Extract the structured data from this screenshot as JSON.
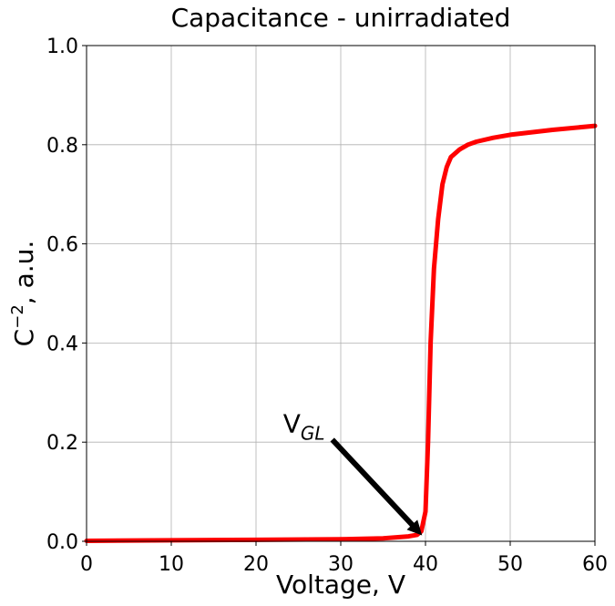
{
  "chart_data": {
    "type": "line",
    "title": "Capacitance - unirradiated",
    "xlabel": "Voltage, V",
    "ylabel_main": "C",
    "ylabel_sup": "−2",
    "ylabel_rest": ", a.u.",
    "xlim": [
      0,
      60
    ],
    "ylim": [
      0,
      1.0
    ],
    "xticks": [
      0,
      10,
      20,
      30,
      40,
      50,
      60
    ],
    "yticks": [
      0.0,
      0.2,
      0.4,
      0.6,
      0.8,
      1.0
    ],
    "xtick_labels": [
      "0",
      "10",
      "20",
      "30",
      "40",
      "50",
      "60"
    ],
    "ytick_labels": [
      "0.0",
      "0.2",
      "0.4",
      "0.6",
      "0.8",
      "1.0"
    ],
    "grid": true,
    "series": [
      {
        "name": "capacitance",
        "color": "#ff0000",
        "x": [
          0,
          10,
          20,
          30,
          35,
          38,
          39,
          39.5,
          40,
          40.3,
          40.6,
          41,
          41.5,
          42,
          42.5,
          43,
          44,
          45,
          46,
          48,
          50,
          55,
          60
        ],
        "y": [
          0.001,
          0.002,
          0.003,
          0.004,
          0.006,
          0.01,
          0.013,
          0.02,
          0.06,
          0.2,
          0.4,
          0.55,
          0.65,
          0.72,
          0.755,
          0.775,
          0.79,
          0.8,
          0.806,
          0.814,
          0.82,
          0.83,
          0.838
        ]
      }
    ],
    "annotation": {
      "text_main": "V",
      "text_sub": "GL",
      "text_at": [
        23.2,
        0.22
      ],
      "arrow_from": [
        29,
        0.205
      ],
      "arrow_to": [
        39.6,
        0.012
      ]
    }
  }
}
